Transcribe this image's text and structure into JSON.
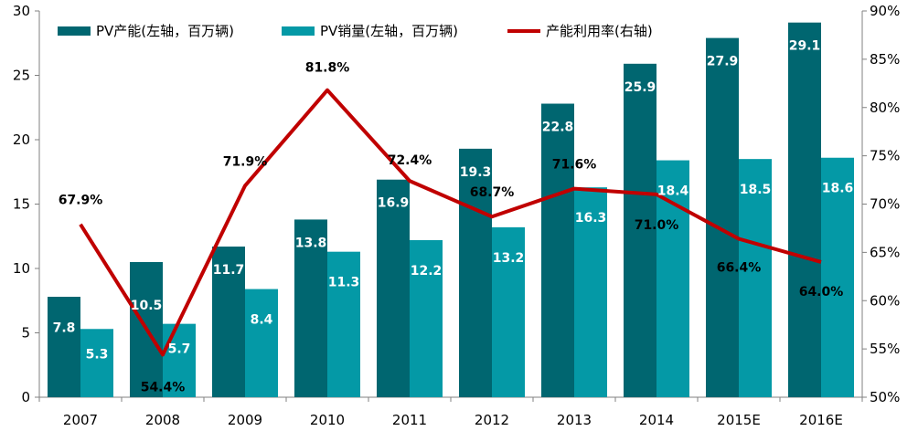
{
  "chart_data": {
    "type": "bar",
    "categories": [
      "2007",
      "2008",
      "2009",
      "2010",
      "2011",
      "2012",
      "2013",
      "2014",
      "2015E",
      "2016E"
    ],
    "series": [
      {
        "name": "PV产能(左轴，百万辆)",
        "type": "bar",
        "axis": "left",
        "color": "#006670",
        "values": [
          7.8,
          10.5,
          11.7,
          13.8,
          16.9,
          19.3,
          22.8,
          25.9,
          27.9,
          29.1
        ],
        "labels": [
          "7.8",
          "10.5",
          "11.7",
          "13.8",
          "16.9",
          "19.3",
          "22.8",
          "25.9",
          "27.9",
          "29.1"
        ]
      },
      {
        "name": "PV销量(左轴，百万辆)",
        "type": "bar",
        "axis": "left",
        "color": "#0499a6",
        "values": [
          5.3,
          5.7,
          8.4,
          11.3,
          12.2,
          13.2,
          16.3,
          18.4,
          18.5,
          18.6
        ],
        "labels": [
          "5.3",
          "5.7",
          "8.4",
          "11.3",
          "12.2",
          "13.2",
          "16.3",
          "18.4",
          "18.5",
          "18.6"
        ]
      },
      {
        "name": "产能利用率(右轴)",
        "type": "line",
        "axis": "right",
        "color": "#c00000",
        "values": [
          67.9,
          54.4,
          71.9,
          81.8,
          72.4,
          68.7,
          71.6,
          71.0,
          66.4,
          64.0
        ],
        "labels": [
          "67.9%",
          "54.4%",
          "71.9%",
          "81.8%",
          "72.4%",
          "68.7%",
          "71.6%",
          "71.0%",
          "66.4%",
          "64.0%"
        ]
      }
    ],
    "y_left": {
      "min": 0,
      "max": 30,
      "ticks": [
        "0",
        "5",
        "10",
        "15",
        "20",
        "25",
        "30"
      ]
    },
    "y_right": {
      "min": 50,
      "max": 90,
      "ticks": [
        "50%",
        "55%",
        "60%",
        "65%",
        "70%",
        "75%",
        "80%",
        "85%",
        "90%"
      ]
    },
    "grid": false,
    "legend_position": "top-left"
  }
}
